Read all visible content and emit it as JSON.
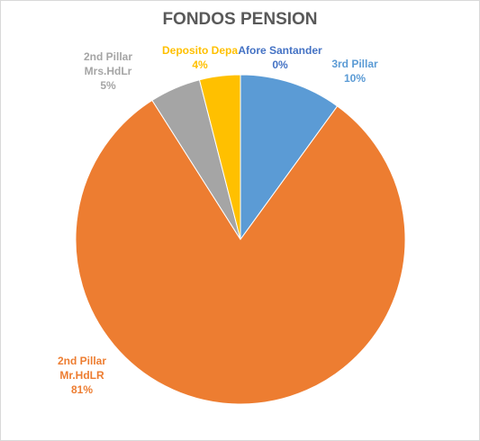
{
  "chart_data": {
    "type": "pie",
    "title": "FONDOS PENSION",
    "categories": [
      "Afore Santander",
      "3rd Pillar",
      "2nd Pillar\nMr.HdLR",
      "2nd Pillar\nMrs.HdLr",
      "Deposito Depa"
    ],
    "values": [
      0,
      10,
      81,
      5,
      4
    ],
    "value_labels": [
      "0%",
      "10%",
      "81%",
      "5%",
      "4%"
    ],
    "colors": [
      "#4472c4",
      "#5b9bd5",
      "#ed7d31",
      "#a5a5a5",
      "#ffc000"
    ]
  }
}
